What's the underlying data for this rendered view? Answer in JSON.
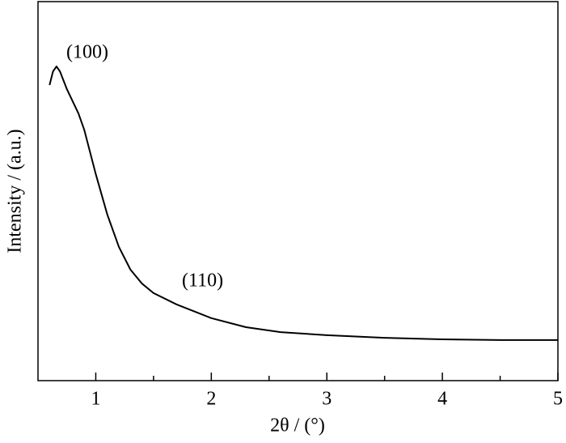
{
  "chart_data": {
    "type": "line",
    "xlabel": "2θ / (°)",
    "ylabel": "Intensity / (a.u.)",
    "annotations": [
      "(100)",
      "(110)"
    ],
    "x": [
      0.6,
      0.63,
      0.66,
      0.69,
      0.75,
      0.85,
      0.9,
      1.0,
      1.1,
      1.2,
      1.3,
      1.4,
      1.5,
      1.7,
      2.0,
      2.3,
      2.6,
      3.0,
      3.5,
      4.0,
      4.5,
      5.0
    ],
    "series": [
      {
        "color": "#000000",
        "values": [
          78,
          81.6,
          82.9,
          81.6,
          76.9,
          70.5,
          66.2,
          54.5,
          43.8,
          35.3,
          29.3,
          25.6,
          23.1,
          20.1,
          16.5,
          14.1,
          12.8,
          12.0,
          11.3,
          10.9,
          10.7,
          10.7
        ]
      }
    ],
    "xlim": [
      0.5,
      5
    ],
    "ylim": [
      0,
      100
    ],
    "xticks": [
      1,
      2,
      3,
      4,
      5
    ],
    "xminorticks": [
      1.5,
      2.5,
      3.5,
      4.5
    ]
  }
}
